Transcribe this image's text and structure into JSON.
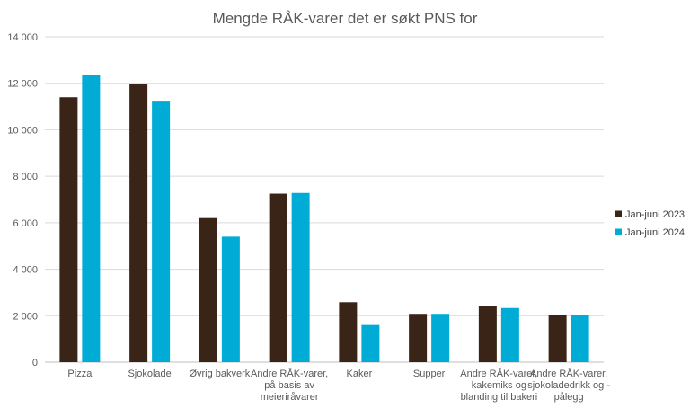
{
  "chart_data": {
    "type": "bar",
    "title": "Mengde RÅK-varer det er søkt PNS for",
    "xlabel": "",
    "ylabel": "",
    "ylim": [
      0,
      14000
    ],
    "yticks": [
      0,
      2000,
      4000,
      6000,
      8000,
      10000,
      12000,
      14000
    ],
    "ytick_labels": [
      "0",
      "2 000",
      "4 000",
      "6 000",
      "8 000",
      "10 000",
      "12 000",
      "14 000"
    ],
    "grid": true,
    "legend_position": "right",
    "categories": [
      [
        "Pizza"
      ],
      [
        "Sjokolade"
      ],
      [
        "Øvrig bakverk"
      ],
      [
        "Andre RÅK-varer,",
        "på basis av",
        "meieriråvarer"
      ],
      [
        "Kaker"
      ],
      [
        "Supper"
      ],
      [
        "Andre RÅK-varer,",
        "kakemiks og",
        "blanding til bakeri"
      ],
      [
        "Andre RÅK-varer,",
        "sjokoladedrikk og -",
        "pålegg"
      ]
    ],
    "series": [
      {
        "name": "Jan-juni 2023",
        "color": "#3a2418",
        "values": [
          11400,
          11950,
          6200,
          7250,
          2580,
          2080,
          2430,
          2050
        ]
      },
      {
        "name": "Jan-juni 2024",
        "color": "#00acd6",
        "values": [
          12350,
          11250,
          5400,
          7280,
          1600,
          2080,
          2330,
          2030
        ]
      }
    ]
  }
}
